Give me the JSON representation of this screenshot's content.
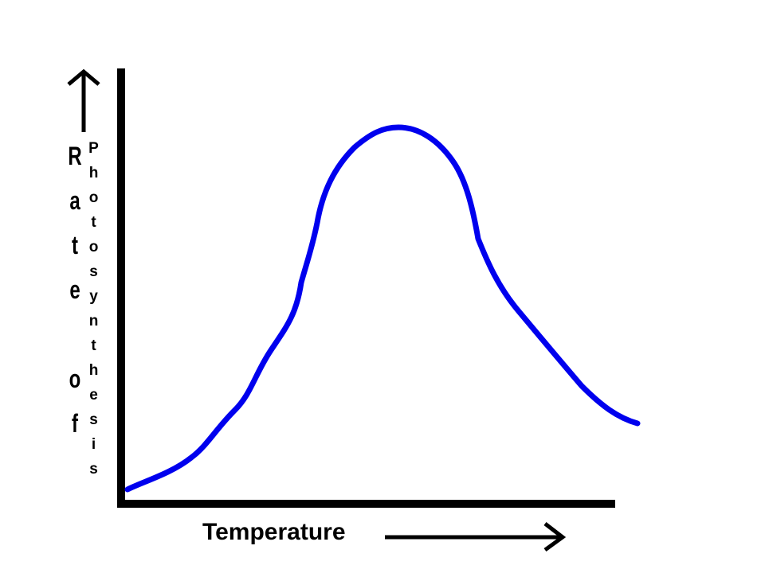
{
  "axis_labels": {
    "y_rate": "Rate of",
    "y_photosynthesis": "Photosynthesis",
    "x": "Temperature"
  }
}
